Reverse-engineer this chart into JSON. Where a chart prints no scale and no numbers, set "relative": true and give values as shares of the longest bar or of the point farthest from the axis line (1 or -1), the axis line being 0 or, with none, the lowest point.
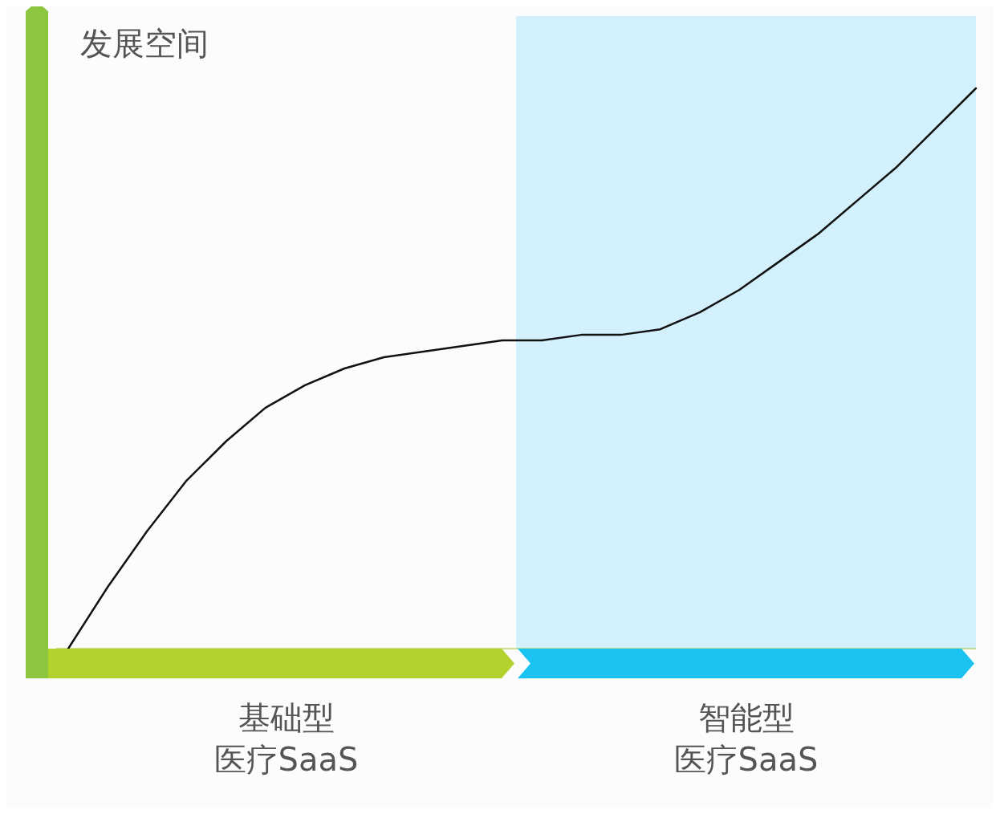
{
  "chart_data": {
    "type": "line",
    "ylabel": "发展空间",
    "relative": true,
    "line_style": "solid",
    "categories": [
      null,
      null,
      null,
      null,
      null,
      null,
      null,
      null,
      null,
      null,
      null,
      null,
      null,
      null,
      null,
      null,
      null,
      null,
      null,
      null,
      null,
      null,
      null,
      null
    ],
    "series": [
      {
        "color": "#111111",
        "values": [
          0,
          0.11,
          0.21,
          0.3,
          0.37,
          0.43,
          0.47,
          0.5,
          0.52,
          0.53,
          0.54,
          0.55,
          0.55,
          0.56,
          0.56,
          0.57,
          0.6,
          0.64,
          0.69,
          0.74,
          0.8,
          0.86,
          0.93,
          1
        ]
      }
    ],
    "annotations": [
      "基础型医疗SaaS",
      "智能型医疗SaaS"
    ]
  }
}
